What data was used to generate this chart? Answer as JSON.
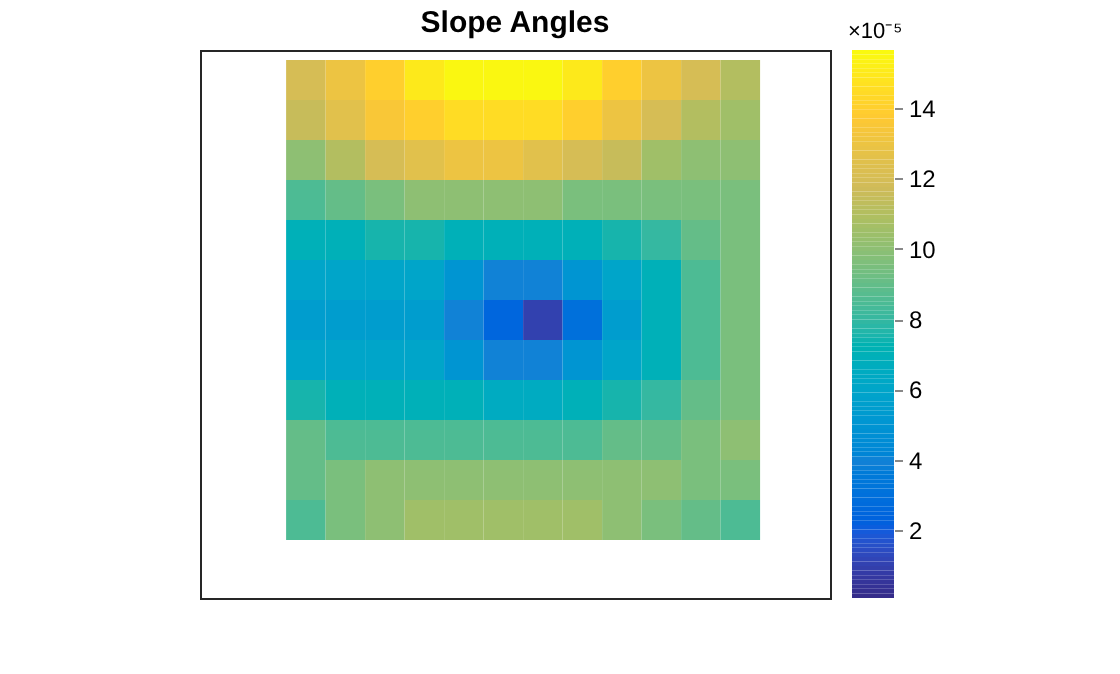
{
  "chart_data": {
    "type": "heatmap",
    "title": "Slope Angles",
    "clabel": "×10⁻⁵",
    "categories": [
      null,
      null,
      null,
      null,
      null,
      null,
      null,
      null,
      null,
      null,
      null,
      null
    ],
    "y_categories": [
      null,
      null,
      null,
      null,
      null,
      null,
      null,
      null,
      null,
      null,
      null,
      null
    ],
    "cells": [
      [
        12,
        13,
        14,
        15,
        15.5,
        15.5,
        15.5,
        15,
        14,
        13,
        12,
        11
      ],
      [
        11.5,
        12.5,
        13.5,
        14,
        14.5,
        14.5,
        14.5,
        14,
        13,
        12,
        11,
        10.5
      ],
      [
        10,
        11,
        12,
        12.5,
        13,
        13,
        12.5,
        12,
        11.5,
        10.5,
        10,
        10
      ],
      [
        8.5,
        9,
        9.5,
        10,
        10,
        10,
        10,
        9.5,
        9.5,
        9.5,
        9.5,
        9.5
      ],
      [
        7,
        7,
        7.5,
        7.5,
        7,
        7,
        7,
        7,
        7.5,
        8,
        9,
        9.5
      ],
      [
        6,
        6,
        6,
        6,
        5,
        4,
        4,
        5,
        6,
        7,
        8.5,
        9.5
      ],
      [
        5.5,
        5.5,
        5.5,
        5.5,
        4,
        2.5,
        1,
        3,
        5.5,
        7,
        8.5,
        9.5
      ],
      [
        6,
        6,
        6,
        6,
        5,
        4,
        4,
        5,
        6,
        7,
        8.5,
        9.5
      ],
      [
        7.5,
        7,
        7,
        7,
        7,
        6.5,
        6.5,
        7,
        7.5,
        8,
        9,
        9.5
      ],
      [
        9,
        8.5,
        8.5,
        8.5,
        8.5,
        8.5,
        8.5,
        8.5,
        9,
        9,
        9.5,
        10
      ],
      [
        9,
        9.5,
        10,
        10,
        10,
        10,
        10,
        10,
        10,
        10,
        9.5,
        9.5
      ],
      [
        8.5,
        9.5,
        10,
        10.5,
        10.5,
        10.5,
        10.5,
        10.5,
        10,
        9.5,
        9,
        8.5
      ]
    ],
    "clim": [
      0.07,
      15.65
    ],
    "cticks": [
      2,
      4,
      6,
      8,
      10,
      12,
      14
    ],
    "tick_labels": false
  }
}
